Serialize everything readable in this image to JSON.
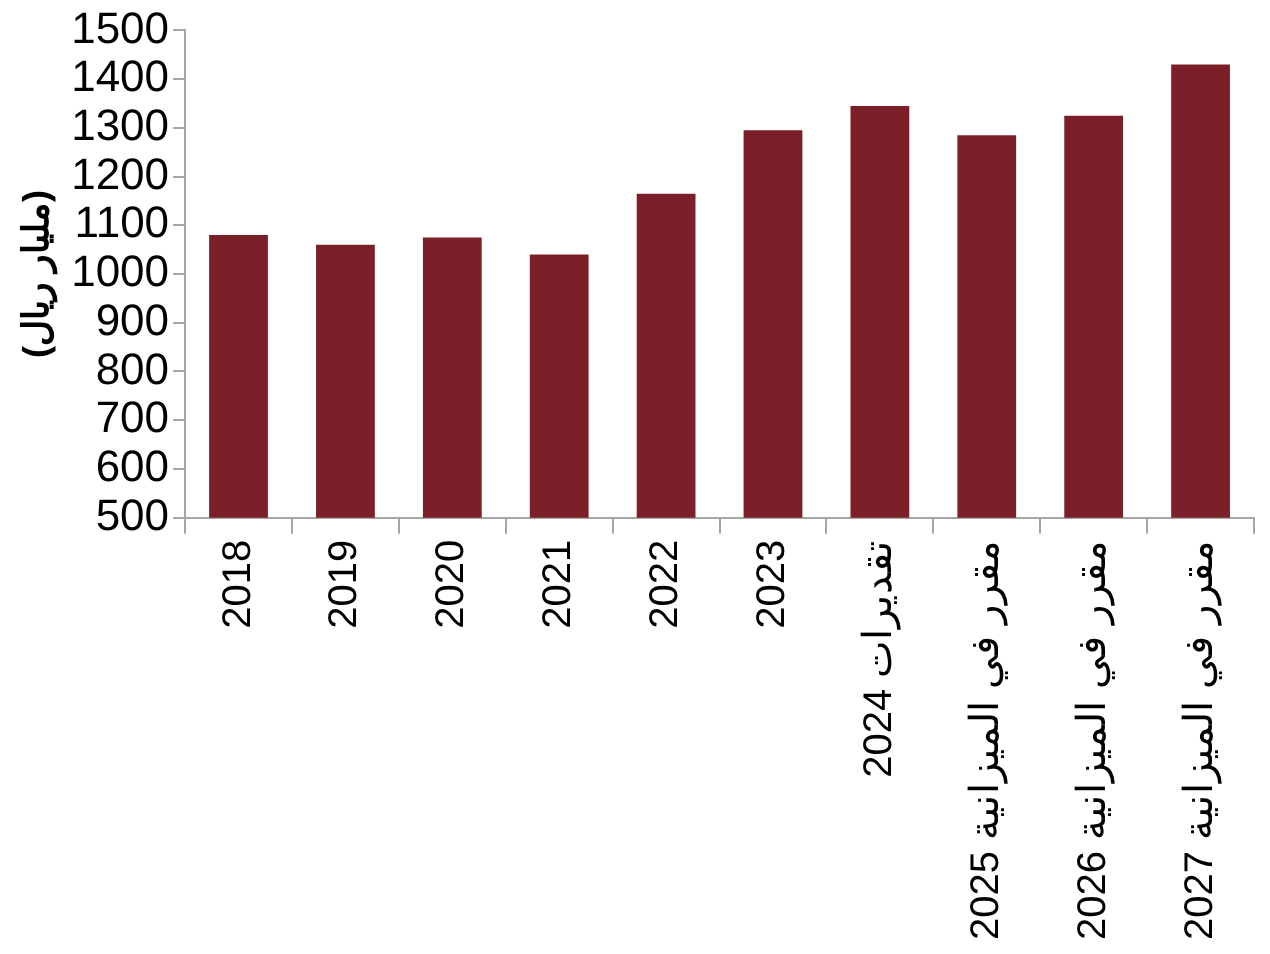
{
  "chart_data": {
    "type": "bar",
    "ylabel": "(مليار ريال)",
    "categories": [
      "2018",
      "2019",
      "2020",
      "2021",
      "2022",
      "2023",
      "2024 تقديرات",
      "2025 مقرر في الميزانية",
      "2026 مقرر في الميزانية",
      "2027 مقرر في الميزانية"
    ],
    "values": [
      1080,
      1060,
      1075,
      1040,
      1165,
      1295,
      1345,
      1285,
      1325,
      1430
    ],
    "color": "#7b2029",
    "ylim": [
      500,
      1500
    ],
    "yticks": [
      500,
      600,
      700,
      800,
      900,
      1000,
      1100,
      1200,
      1300,
      1400,
      1500
    ],
    "grid": false,
    "legend": false
  }
}
